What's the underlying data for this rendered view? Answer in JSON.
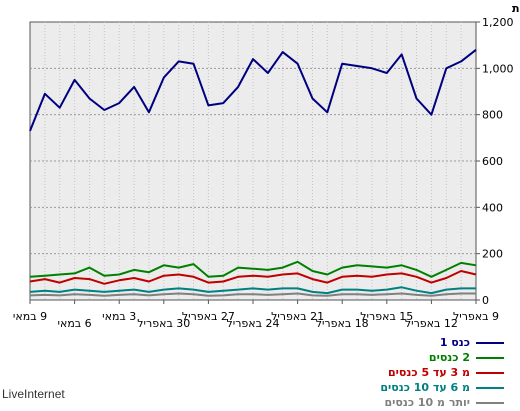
{
  "chart_data": {
    "type": "line",
    "ylabel": "כמות",
    "ylim": [
      0,
      1200
    ],
    "yticks": [
      0,
      200,
      400,
      600,
      800,
      1000,
      1200
    ],
    "ytick_labels": [
      "0",
      "200",
      "400",
      "600",
      "800",
      "1,000",
      "1,200"
    ],
    "x_tick_labels": [
      "9 במאי",
      "6 במאי",
      "3 במאי",
      "30 באפריל",
      "27 באפריל",
      "24 באפריל",
      "21 באפריל",
      "18 באפריל",
      "15 באפריל",
      "12 באפריל",
      "9 באפריל"
    ],
    "grid": true,
    "legend_position": "bottom-right",
    "series": [
      {
        "name": "כנס 1",
        "color": "#000080",
        "values": [
          730,
          890,
          830,
          950,
          870,
          820,
          850,
          920,
          810,
          960,
          1030,
          1020,
          840,
          850,
          920,
          1040,
          980,
          1070,
          1020,
          870,
          810,
          1020,
          1010,
          1000,
          980,
          1060,
          870,
          800,
          1000,
          1030,
          1080
        ]
      },
      {
        "name": "2 כנסים",
        "color": "#008000",
        "values": [
          100,
          105,
          110,
          115,
          140,
          105,
          110,
          130,
          120,
          150,
          140,
          155,
          100,
          105,
          140,
          135,
          130,
          140,
          165,
          125,
          110,
          140,
          150,
          145,
          140,
          150,
          130,
          100,
          130,
          160,
          150
        ]
      },
      {
        "name": "מ 3 עד 5 כנסים",
        "color": "#c00000",
        "values": [
          80,
          90,
          75,
          95,
          90,
          70,
          85,
          95,
          80,
          105,
          110,
          100,
          75,
          80,
          100,
          105,
          100,
          110,
          115,
          90,
          75,
          100,
          105,
          100,
          110,
          115,
          100,
          75,
          95,
          125,
          110
        ]
      },
      {
        "name": "מ 6 עד 10 כנסים",
        "color": "#008080",
        "values": [
          35,
          40,
          35,
          45,
          40,
          35,
          40,
          45,
          35,
          45,
          50,
          45,
          35,
          40,
          45,
          50,
          45,
          50,
          50,
          35,
          30,
          45,
          45,
          40,
          45,
          55,
          40,
          30,
          45,
          50,
          50
        ]
      },
      {
        "name": "יותר מ 10 כנסים",
        "color": "#808080",
        "values": [
          20,
          22,
          20,
          25,
          22,
          18,
          22,
          25,
          20,
          25,
          28,
          25,
          18,
          20,
          25,
          25,
          22,
          25,
          28,
          20,
          18,
          25,
          25,
          22,
          25,
          28,
          22,
          18,
          25,
          28,
          28
        ]
      }
    ]
  },
  "footer_label": "LiveInternet"
}
